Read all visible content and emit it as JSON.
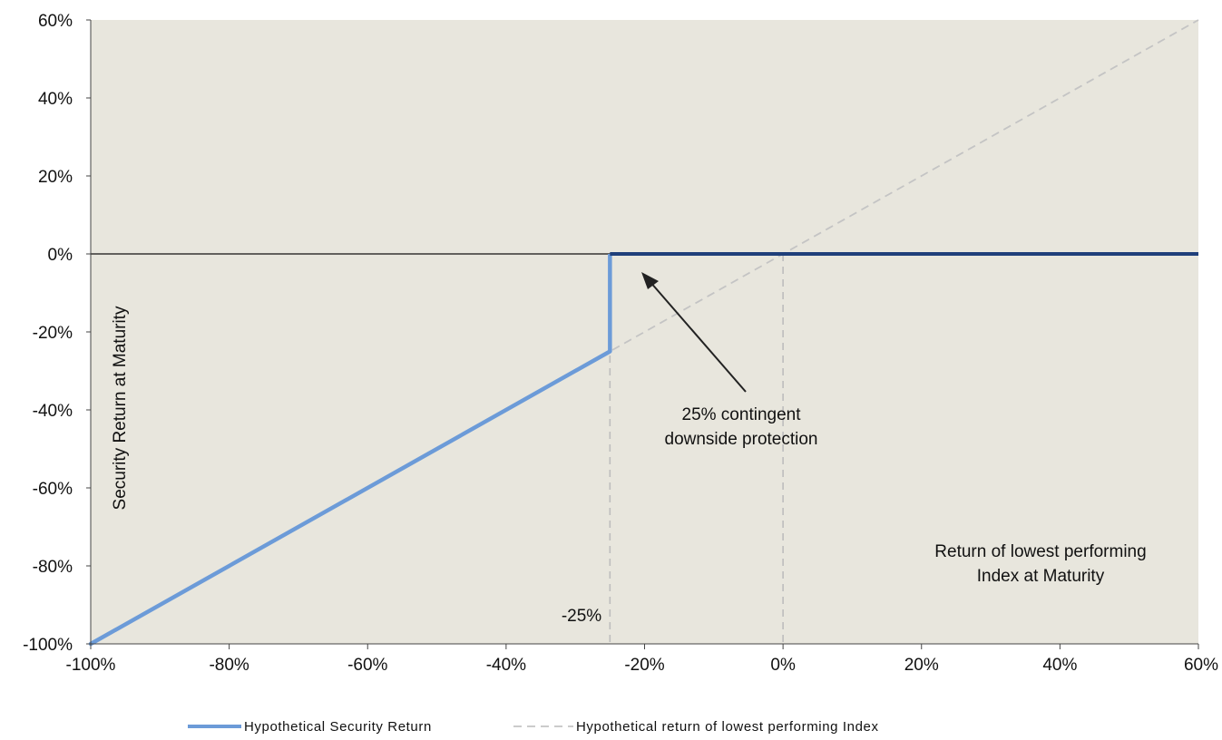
{
  "chart_data": {
    "type": "line",
    "xlabel": "Return of lowest performing Index at Maturity",
    "ylabel": "Security Return at Maturity",
    "xlim": [
      -100,
      60
    ],
    "ylim": [
      -100,
      60
    ],
    "x_ticks": [
      -100,
      -80,
      -60,
      -40,
      -20,
      0,
      20,
      40,
      60
    ],
    "y_ticks": [
      -100,
      -80,
      -60,
      -40,
      -20,
      0,
      20,
      40,
      60
    ],
    "x_tick_labels": [
      "-100%",
      "-80%",
      "-60%",
      "-40%",
      "-20%",
      "0%",
      "20%",
      "40%",
      "60%"
    ],
    "y_tick_labels": [
      "-100%",
      "-80%",
      "-60%",
      "-40%",
      "-20%",
      "0%",
      "20%",
      "40%",
      "60%"
    ],
    "grid": false,
    "legend_position": "bottom",
    "series": [
      {
        "name": "Hypothetical Security Return",
        "color": "#6c9bd8",
        "flat_color": "#1f3f7a",
        "style": "solid",
        "points": [
          [
            -100,
            -100
          ],
          [
            -25,
            -25
          ],
          [
            -25,
            0
          ],
          [
            60,
            0
          ]
        ]
      },
      {
        "name": "Hypothetical return of lowest performing Index",
        "color": "#c4c4c4",
        "style": "dashed",
        "points": [
          [
            -100,
            -100
          ],
          [
            60,
            60
          ]
        ]
      }
    ],
    "reference_lines": [
      {
        "axis": "x",
        "value": -25
      },
      {
        "axis": "x",
        "value": 0
      }
    ],
    "annotations": {
      "barrier_label": "-25%",
      "protection_line1": "25% contingent",
      "protection_line2": "downside protection",
      "xlabel_line1": "Return of lowest performing",
      "xlabel_line2": "Index at Maturity"
    },
    "legend": {
      "series1_label": "Hypothetical Security Return",
      "series2_label": "Hypothetical return of lowest performing Index"
    },
    "colors": {
      "plot_background": "#e8e6dd",
      "zero_line": "#111111",
      "arrow": "#222222",
      "reference_line": "#bdbdbd"
    }
  }
}
